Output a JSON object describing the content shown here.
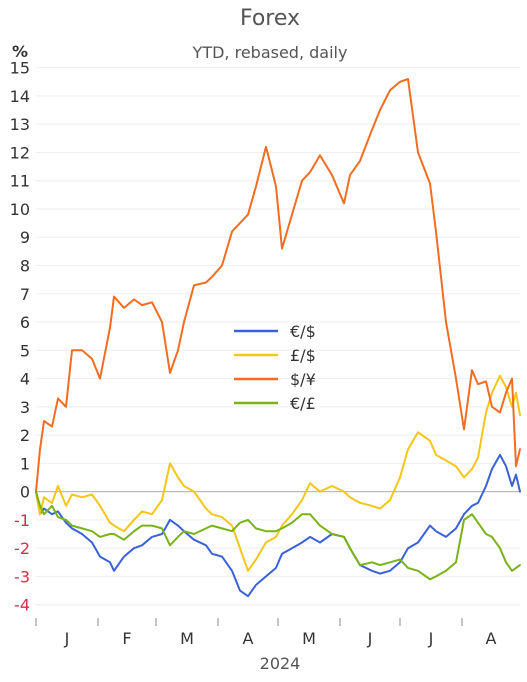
{
  "chart_data": {
    "type": "line",
    "title": "Forex",
    "subtitle": "YTD, rebased, daily",
    "ylabel": "%",
    "xlabel": "2024",
    "ylim": [
      -4.4,
      15.2
    ],
    "yticks": [
      15,
      14,
      13,
      12,
      11,
      10,
      9,
      8,
      7,
      6,
      5,
      4,
      3,
      2,
      1,
      0,
      -1,
      -2,
      -3,
      -4
    ],
    "x_range": [
      "2024-01-01",
      "2024-08-30"
    ],
    "xtick_labels": [
      {
        "label": "J",
        "month_start": "2024-01-01"
      },
      {
        "label": "F",
        "month_start": "2024-02-01"
      },
      {
        "label": "M",
        "month_start": "2024-03-01"
      },
      {
        "label": "A",
        "month_start": "2024-04-01"
      },
      {
        "label": "M",
        "month_start": "2024-05-01"
      },
      {
        "label": "J",
        "month_start": "2024-06-01"
      },
      {
        "label": "J",
        "month_start": "2024-07-01"
      },
      {
        "label": "A",
        "month_start": "2024-08-01"
      }
    ],
    "grid": true,
    "legend_position": "center",
    "zero_line_color": "#bbbbbb",
    "series": [
      {
        "name": "€/$",
        "color": "#3a62d8",
        "points": [
          [
            "2024-01-01",
            0.0
          ],
          [
            "2024-01-03",
            -0.8
          ],
          [
            "2024-01-05",
            -0.6
          ],
          [
            "2024-01-09",
            -0.8
          ],
          [
            "2024-01-12",
            -0.7
          ],
          [
            "2024-01-16",
            -1.1
          ],
          [
            "2024-01-19",
            -1.3
          ],
          [
            "2024-01-24",
            -1.5
          ],
          [
            "2024-01-29",
            -1.8
          ],
          [
            "2024-02-02",
            -2.3
          ],
          [
            "2024-02-07",
            -2.5
          ],
          [
            "2024-02-09",
            -2.8
          ],
          [
            "2024-02-14",
            -2.3
          ],
          [
            "2024-02-19",
            -2.0
          ],
          [
            "2024-02-23",
            -1.9
          ],
          [
            "2024-02-28",
            -1.6
          ],
          [
            "2024-03-04",
            -1.5
          ],
          [
            "2024-03-08",
            -1.0
          ],
          [
            "2024-03-12",
            -1.2
          ],
          [
            "2024-03-15",
            -1.4
          ],
          [
            "2024-03-20",
            -1.7
          ],
          [
            "2024-03-26",
            -1.9
          ],
          [
            "2024-03-29",
            -2.2
          ],
          [
            "2024-04-03",
            -2.3
          ],
          [
            "2024-04-08",
            -2.8
          ],
          [
            "2024-04-12",
            -3.5
          ],
          [
            "2024-04-16",
            -3.7
          ],
          [
            "2024-04-20",
            -3.3
          ],
          [
            "2024-04-25",
            -3.0
          ],
          [
            "2024-04-30",
            -2.7
          ],
          [
            "2024-05-03",
            -2.2
          ],
          [
            "2024-05-08",
            -2.0
          ],
          [
            "2024-05-13",
            -1.8
          ],
          [
            "2024-05-17",
            -1.6
          ],
          [
            "2024-05-22",
            -1.8
          ],
          [
            "2024-05-28",
            -1.5
          ],
          [
            "2024-06-03",
            -1.6
          ],
          [
            "2024-06-06",
            -2.0
          ],
          [
            "2024-06-11",
            -2.6
          ],
          [
            "2024-06-17",
            -2.8
          ],
          [
            "2024-06-21",
            -2.9
          ],
          [
            "2024-06-26",
            -2.8
          ],
          [
            "2024-07-01",
            -2.5
          ],
          [
            "2024-07-05",
            -2.0
          ],
          [
            "2024-07-10",
            -1.8
          ],
          [
            "2024-07-16",
            -1.2
          ],
          [
            "2024-07-19",
            -1.4
          ],
          [
            "2024-07-24",
            -1.6
          ],
          [
            "2024-07-29",
            -1.3
          ],
          [
            "2024-08-02",
            -0.8
          ],
          [
            "2024-08-06",
            -0.5
          ],
          [
            "2024-08-09",
            -0.4
          ],
          [
            "2024-08-13",
            0.2
          ],
          [
            "2024-08-16",
            0.8
          ],
          [
            "2024-08-20",
            1.3
          ],
          [
            "2024-08-23",
            0.9
          ],
          [
            "2024-08-26",
            0.2
          ],
          [
            "2024-08-28",
            0.6
          ],
          [
            "2024-08-30",
            0.0
          ]
        ]
      },
      {
        "name": "£/$",
        "color": "#f5c518",
        "points": [
          [
            "2024-01-01",
            0.0
          ],
          [
            "2024-01-03",
            -0.8
          ],
          [
            "2024-01-05",
            -0.2
          ],
          [
            "2024-01-09",
            -0.4
          ],
          [
            "2024-01-12",
            0.2
          ],
          [
            "2024-01-16",
            -0.5
          ],
          [
            "2024-01-19",
            -0.1
          ],
          [
            "2024-01-24",
            -0.2
          ],
          [
            "2024-01-29",
            -0.1
          ],
          [
            "2024-02-02",
            -0.5
          ],
          [
            "2024-02-07",
            -1.1
          ],
          [
            "2024-02-09",
            -1.2
          ],
          [
            "2024-02-14",
            -1.4
          ],
          [
            "2024-02-19",
            -1.0
          ],
          [
            "2024-02-23",
            -0.7
          ],
          [
            "2024-02-28",
            -0.8
          ],
          [
            "2024-03-04",
            -0.3
          ],
          [
            "2024-03-08",
            1.0
          ],
          [
            "2024-03-12",
            0.5
          ],
          [
            "2024-03-15",
            0.2
          ],
          [
            "2024-03-20",
            0.0
          ],
          [
            "2024-03-26",
            -0.6
          ],
          [
            "2024-03-29",
            -0.8
          ],
          [
            "2024-04-03",
            -0.9
          ],
          [
            "2024-04-08",
            -1.2
          ],
          [
            "2024-04-12",
            -2.0
          ],
          [
            "2024-04-16",
            -2.8
          ],
          [
            "2024-04-20",
            -2.4
          ],
          [
            "2024-04-25",
            -1.8
          ],
          [
            "2024-04-30",
            -1.6
          ],
          [
            "2024-05-03",
            -1.2
          ],
          [
            "2024-05-08",
            -0.8
          ],
          [
            "2024-05-13",
            -0.3
          ],
          [
            "2024-05-17",
            0.3
          ],
          [
            "2024-05-22",
            0.0
          ],
          [
            "2024-05-28",
            0.2
          ],
          [
            "2024-06-03",
            0.0
          ],
          [
            "2024-06-06",
            -0.2
          ],
          [
            "2024-06-11",
            -0.4
          ],
          [
            "2024-06-17",
            -0.5
          ],
          [
            "2024-06-21",
            -0.6
          ],
          [
            "2024-06-26",
            -0.3
          ],
          [
            "2024-07-01",
            0.5
          ],
          [
            "2024-07-05",
            1.5
          ],
          [
            "2024-07-10",
            2.1
          ],
          [
            "2024-07-16",
            1.8
          ],
          [
            "2024-07-19",
            1.3
          ],
          [
            "2024-07-24",
            1.1
          ],
          [
            "2024-07-29",
            0.9
          ],
          [
            "2024-08-02",
            0.5
          ],
          [
            "2024-08-06",
            0.8
          ],
          [
            "2024-08-09",
            1.2
          ],
          [
            "2024-08-13",
            2.8
          ],
          [
            "2024-08-16",
            3.5
          ],
          [
            "2024-08-20",
            4.1
          ],
          [
            "2024-08-23",
            3.7
          ],
          [
            "2024-08-26",
            3.0
          ],
          [
            "2024-08-28",
            3.5
          ],
          [
            "2024-08-30",
            2.7
          ]
        ]
      },
      {
        "name": "$/¥",
        "color": "#f26d21",
        "points": [
          [
            "2024-01-01",
            0.0
          ],
          [
            "2024-01-03",
            1.5
          ],
          [
            "2024-01-05",
            2.5
          ],
          [
            "2024-01-09",
            2.3
          ],
          [
            "2024-01-12",
            3.3
          ],
          [
            "2024-01-16",
            3.0
          ],
          [
            "2024-01-19",
            5.0
          ],
          [
            "2024-01-24",
            5.0
          ],
          [
            "2024-01-29",
            4.7
          ],
          [
            "2024-02-02",
            4.0
          ],
          [
            "2024-02-07",
            5.8
          ],
          [
            "2024-02-09",
            6.9
          ],
          [
            "2024-02-14",
            6.5
          ],
          [
            "2024-02-19",
            6.8
          ],
          [
            "2024-02-23",
            6.6
          ],
          [
            "2024-02-28",
            6.7
          ],
          [
            "2024-03-04",
            6.0
          ],
          [
            "2024-03-08",
            4.2
          ],
          [
            "2024-03-12",
            5.0
          ],
          [
            "2024-03-15",
            6.0
          ],
          [
            "2024-03-20",
            7.3
          ],
          [
            "2024-03-26",
            7.4
          ],
          [
            "2024-03-29",
            7.6
          ],
          [
            "2024-04-03",
            8.0
          ],
          [
            "2024-04-08",
            9.2
          ],
          [
            "2024-04-12",
            9.5
          ],
          [
            "2024-04-16",
            9.8
          ],
          [
            "2024-04-20",
            10.8
          ],
          [
            "2024-04-25",
            12.2
          ],
          [
            "2024-04-30",
            10.8
          ],
          [
            "2024-05-03",
            8.6
          ],
          [
            "2024-05-08",
            9.8
          ],
          [
            "2024-05-13",
            11.0
          ],
          [
            "2024-05-17",
            11.3
          ],
          [
            "2024-05-22",
            11.9
          ],
          [
            "2024-05-28",
            11.2
          ],
          [
            "2024-06-03",
            10.2
          ],
          [
            "2024-06-06",
            11.2
          ],
          [
            "2024-06-11",
            11.7
          ],
          [
            "2024-06-17",
            12.8
          ],
          [
            "2024-06-21",
            13.5
          ],
          [
            "2024-06-26",
            14.2
          ],
          [
            "2024-07-01",
            14.5
          ],
          [
            "2024-07-05",
            14.6
          ],
          [
            "2024-07-10",
            12.0
          ],
          [
            "2024-07-16",
            10.9
          ],
          [
            "2024-07-19",
            9.2
          ],
          [
            "2024-07-24",
            6.0
          ],
          [
            "2024-07-29",
            4.0
          ],
          [
            "2024-08-02",
            2.2
          ],
          [
            "2024-08-06",
            4.3
          ],
          [
            "2024-08-09",
            3.8
          ],
          [
            "2024-08-13",
            3.9
          ],
          [
            "2024-08-16",
            3.0
          ],
          [
            "2024-08-20",
            2.8
          ],
          [
            "2024-08-23",
            3.5
          ],
          [
            "2024-08-26",
            4.0
          ],
          [
            "2024-08-28",
            0.9
          ],
          [
            "2024-08-30",
            1.5
          ]
        ]
      },
      {
        "name": "€/£",
        "color": "#7ab317",
        "points": [
          [
            "2024-01-01",
            0.0
          ],
          [
            "2024-01-03",
            -0.5
          ],
          [
            "2024-01-05",
            -0.8
          ],
          [
            "2024-01-09",
            -0.5
          ],
          [
            "2024-01-12",
            -0.9
          ],
          [
            "2024-01-16",
            -1.0
          ],
          [
            "2024-01-19",
            -1.2
          ],
          [
            "2024-01-24",
            -1.3
          ],
          [
            "2024-01-29",
            -1.4
          ],
          [
            "2024-02-02",
            -1.6
          ],
          [
            "2024-02-07",
            -1.5
          ],
          [
            "2024-02-09",
            -1.5
          ],
          [
            "2024-02-14",
            -1.7
          ],
          [
            "2024-02-19",
            -1.4
          ],
          [
            "2024-02-23",
            -1.2
          ],
          [
            "2024-02-28",
            -1.2
          ],
          [
            "2024-03-04",
            -1.3
          ],
          [
            "2024-03-08",
            -1.9
          ],
          [
            "2024-03-12",
            -1.6
          ],
          [
            "2024-03-15",
            -1.4
          ],
          [
            "2024-03-20",
            -1.5
          ],
          [
            "2024-03-26",
            -1.3
          ],
          [
            "2024-03-29",
            -1.2
          ],
          [
            "2024-04-03",
            -1.3
          ],
          [
            "2024-04-08",
            -1.4
          ],
          [
            "2024-04-12",
            -1.1
          ],
          [
            "2024-04-16",
            -1.0
          ],
          [
            "2024-04-20",
            -1.3
          ],
          [
            "2024-04-25",
            -1.4
          ],
          [
            "2024-04-30",
            -1.4
          ],
          [
            "2024-05-03",
            -1.3
          ],
          [
            "2024-05-08",
            -1.1
          ],
          [
            "2024-05-13",
            -0.8
          ],
          [
            "2024-05-17",
            -0.8
          ],
          [
            "2024-05-22",
            -1.2
          ],
          [
            "2024-05-28",
            -1.5
          ],
          [
            "2024-06-03",
            -1.6
          ],
          [
            "2024-06-06",
            -2.0
          ],
          [
            "2024-06-11",
            -2.6
          ],
          [
            "2024-06-17",
            -2.5
          ],
          [
            "2024-06-21",
            -2.6
          ],
          [
            "2024-06-26",
            -2.5
          ],
          [
            "2024-07-01",
            -2.4
          ],
          [
            "2024-07-05",
            -2.7
          ],
          [
            "2024-07-10",
            -2.8
          ],
          [
            "2024-07-16",
            -3.1
          ],
          [
            "2024-07-19",
            -3.0
          ],
          [
            "2024-07-24",
            -2.8
          ],
          [
            "2024-07-29",
            -2.5
          ],
          [
            "2024-08-02",
            -1.0
          ],
          [
            "2024-08-06",
            -0.8
          ],
          [
            "2024-08-09",
            -1.1
          ],
          [
            "2024-08-13",
            -1.5
          ],
          [
            "2024-08-16",
            -1.6
          ],
          [
            "2024-08-20",
            -2.0
          ],
          [
            "2024-08-23",
            -2.5
          ],
          [
            "2024-08-26",
            -2.8
          ],
          [
            "2024-08-28",
            -2.7
          ],
          [
            "2024-08-30",
            -2.6
          ]
        ]
      }
    ]
  }
}
